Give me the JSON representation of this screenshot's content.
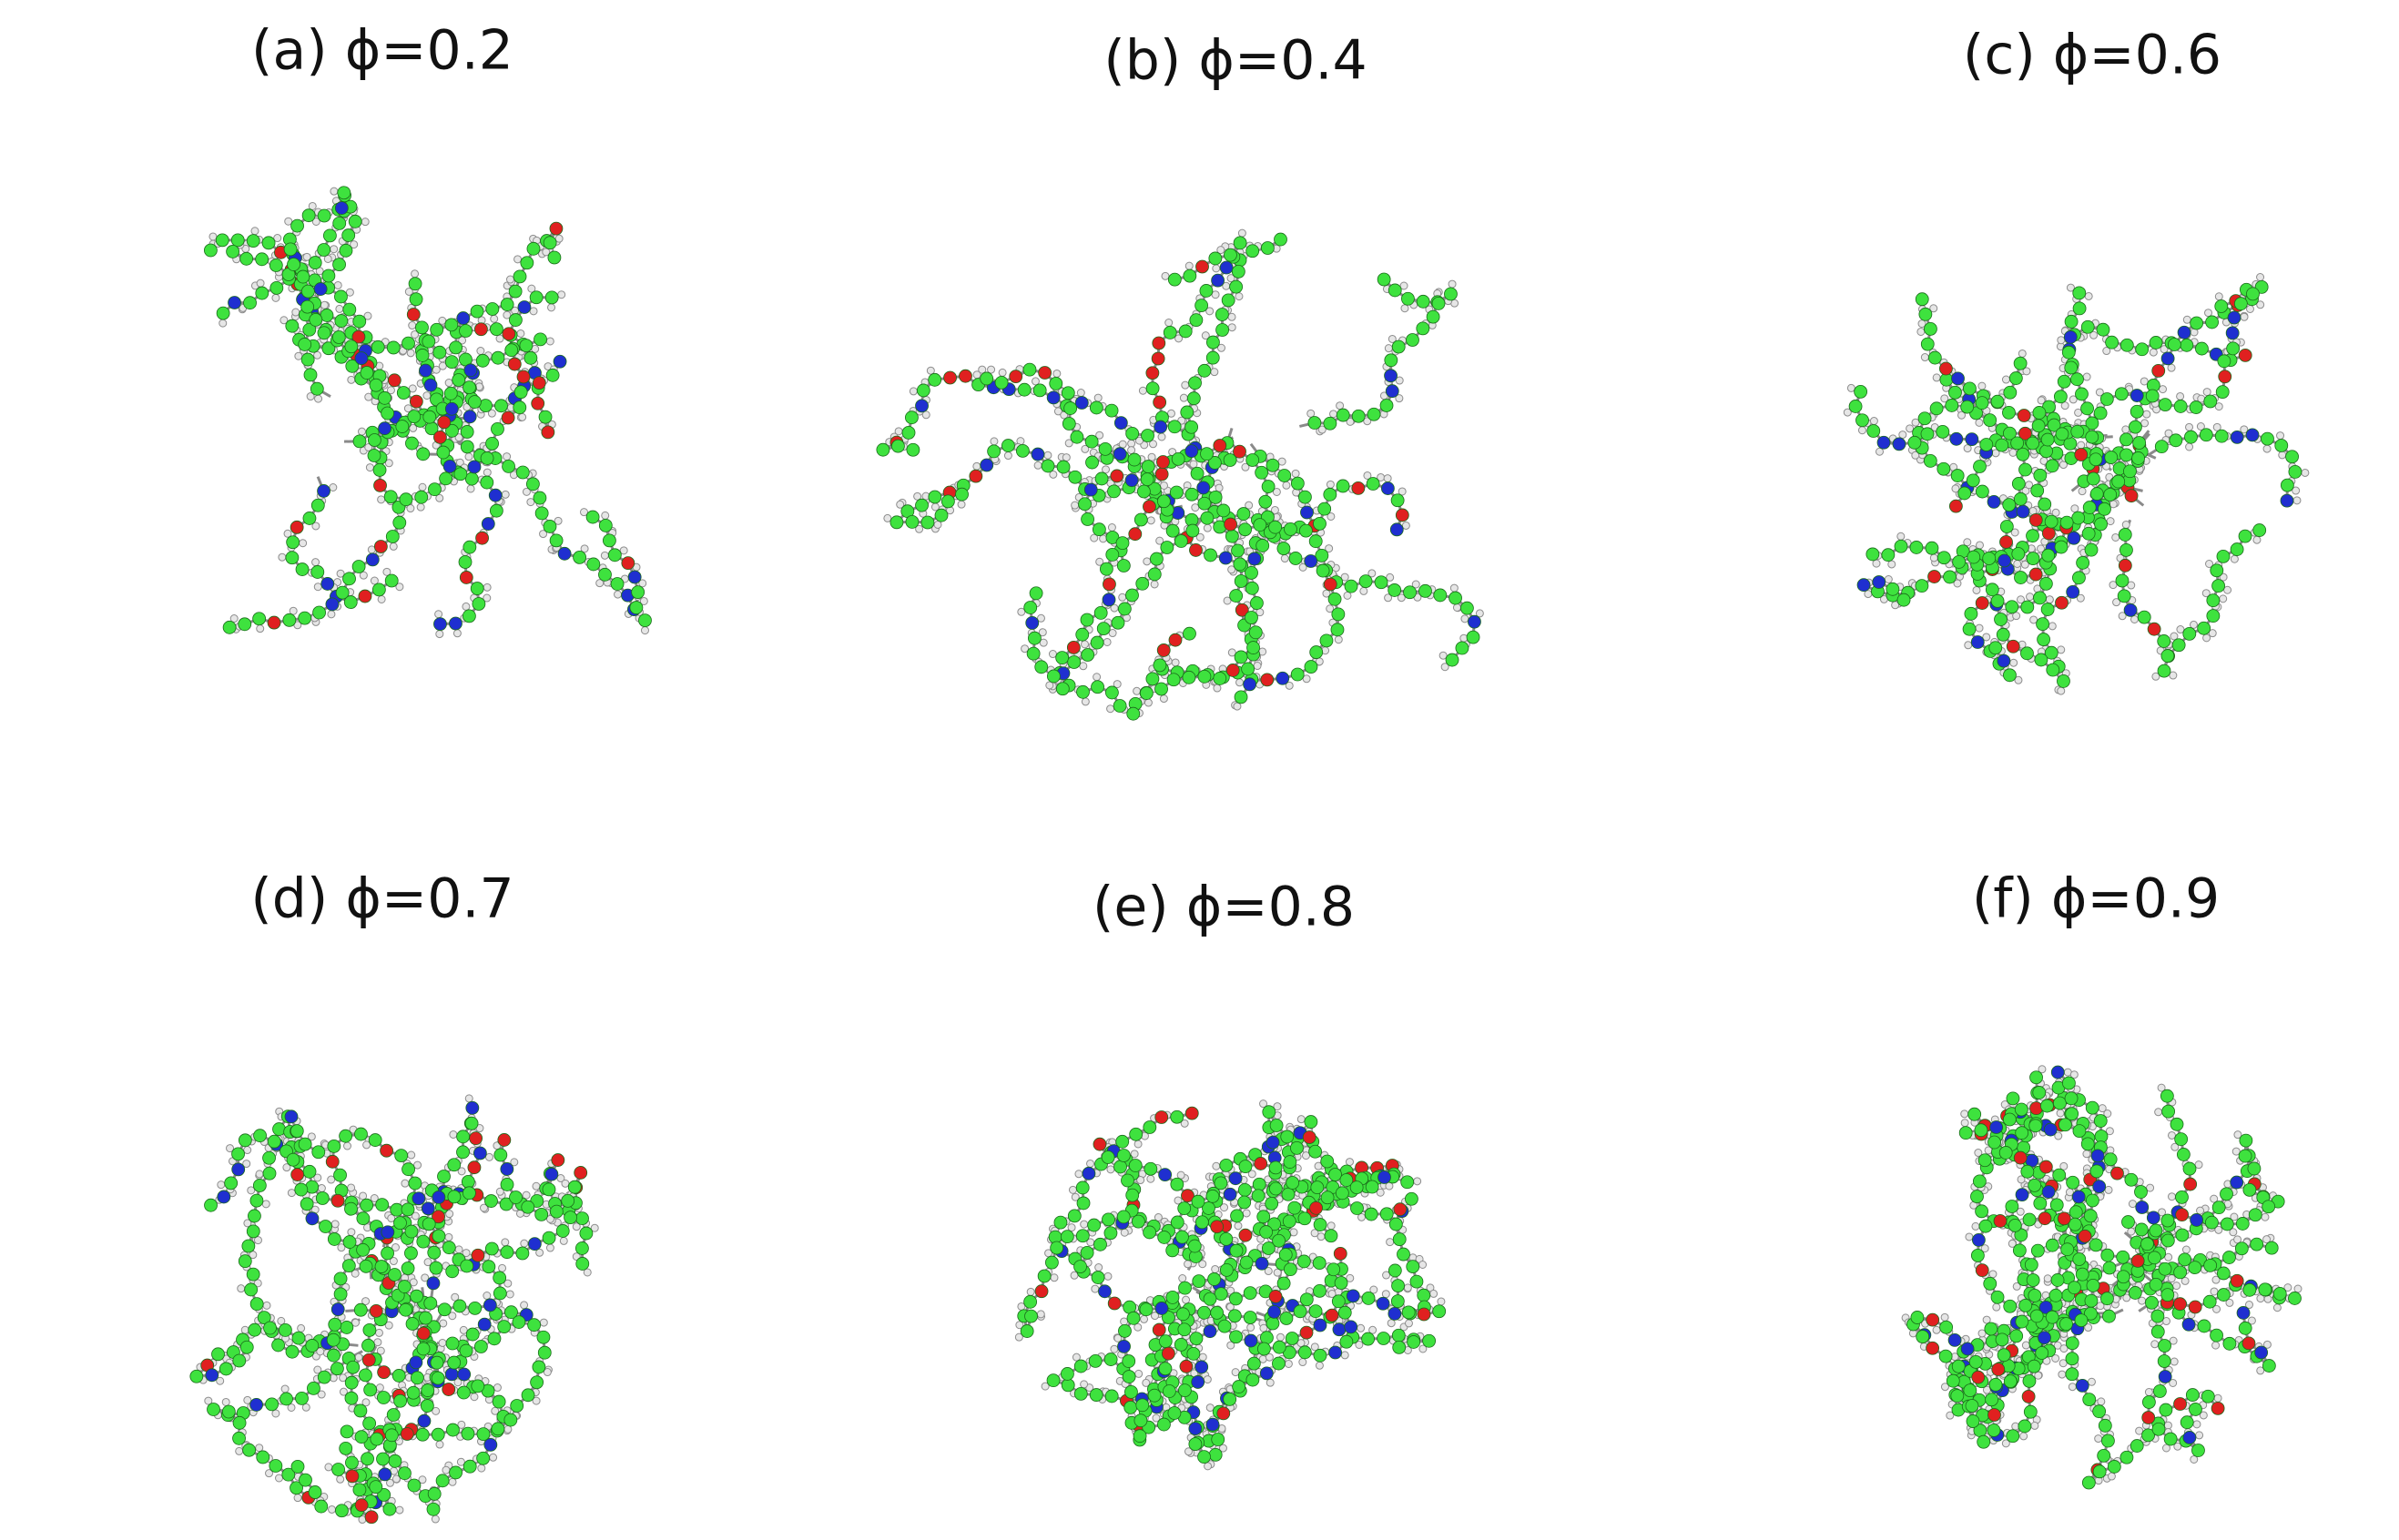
{
  "panels": [
    {
      "label": "(a) ϕ=0.2"
    },
    {
      "label": "(b) ϕ=0.4"
    },
    {
      "label": "(c) ϕ=0.6"
    },
    {
      "label": "(d) ϕ=0.7"
    },
    {
      "label": "(e) ϕ=0.8"
    },
    {
      "label": "(f) ϕ=0.9"
    }
  ]
}
